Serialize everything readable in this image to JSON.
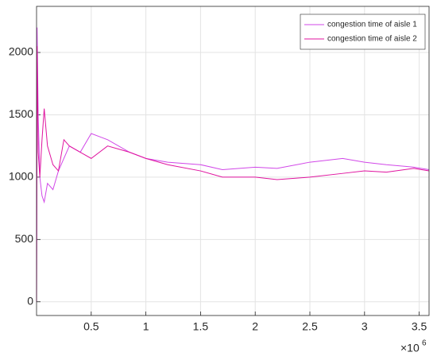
{
  "chart_data": {
    "type": "line",
    "x": [
      0,
      5000,
      15000,
      30000,
      50000,
      70000,
      100000,
      150000,
      200000,
      250000,
      300000,
      400000,
      500000,
      650000,
      850000,
      1000000,
      1200000,
      1500000,
      1700000,
      2000000,
      2200000,
      2500000,
      2800000,
      3000000,
      3200000,
      3450000,
      3590000
    ],
    "series": [
      {
        "name": "congestion time of aisle 1",
        "color": "#d147e8",
        "values": [
          0,
          2200,
          1500,
          1000,
          850,
          800,
          950,
          900,
          1050,
          1150,
          1250,
          1200,
          1350,
          1300,
          1200,
          1150,
          1120,
          1100,
          1060,
          1080,
          1070,
          1120,
          1150,
          1120,
          1100,
          1080,
          1060
        ]
      },
      {
        "name": "congestion time of aisle 2",
        "color": "#e0139f",
        "values": [
          0,
          2050,
          1200,
          1000,
          1300,
          1550,
          1250,
          1100,
          1050,
          1300,
          1250,
          1200,
          1150,
          1250,
          1200,
          1150,
          1100,
          1050,
          1000,
          1000,
          980,
          1000,
          1030,
          1050,
          1040,
          1070,
          1050
        ]
      }
    ],
    "xlim": [
      0,
      3590000
    ],
    "ylim": [
      -110,
      2370
    ],
    "xticks": [
      {
        "value": 500000,
        "label": "0.5"
      },
      {
        "value": 1000000,
        "label": "1"
      },
      {
        "value": 1500000,
        "label": "1.5"
      },
      {
        "value": 2000000,
        "label": "2"
      },
      {
        "value": 2500000,
        "label": "2.5"
      },
      {
        "value": 3000000,
        "label": "3"
      },
      {
        "value": 3500000,
        "label": "3.5"
      }
    ],
    "yticks": [
      0,
      500,
      1000,
      1500,
      2000
    ],
    "x_exponent": {
      "base": "×10",
      "power": "6"
    },
    "grid": true,
    "legend": "top-right"
  }
}
